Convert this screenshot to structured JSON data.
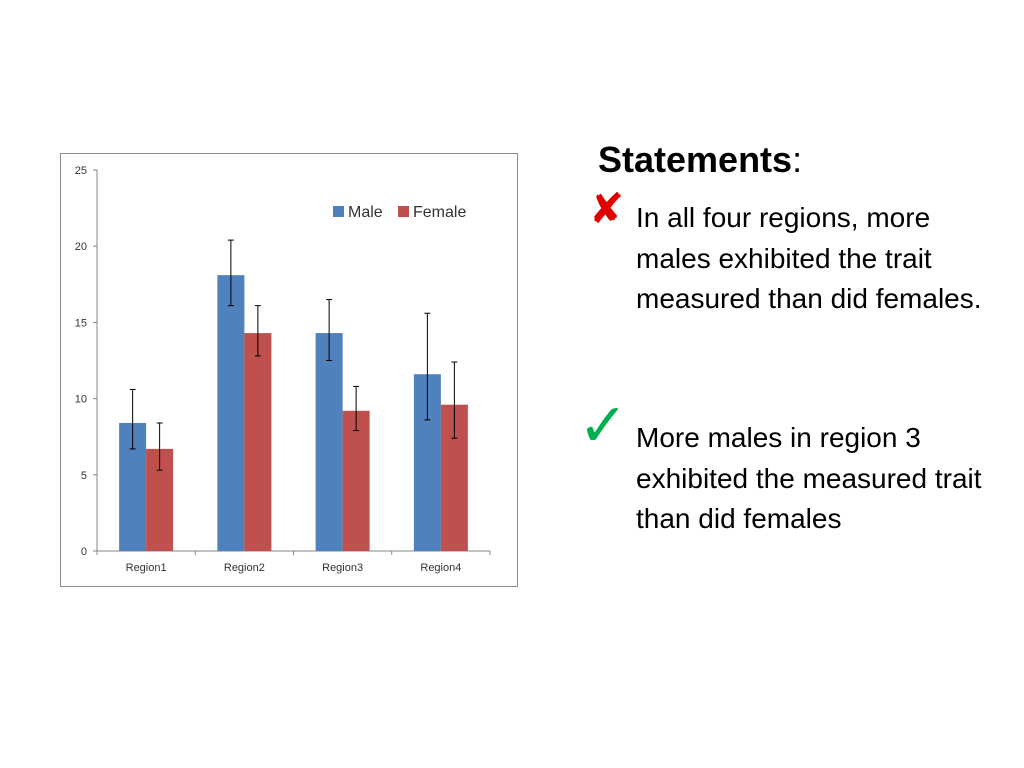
{
  "statements": {
    "title": "Statements",
    "title_suffix": ":",
    "items": [
      {
        "text": "In all four regions, more males exhibited the trait measured than did females.",
        "verdict": "false",
        "icon": "cross-icon",
        "color": "#e00000"
      },
      {
        "text": "More males in region 3 exhibited the measured trait than did females",
        "verdict": "true",
        "icon": "check-icon",
        "color": "#00b050"
      }
    ]
  },
  "chart_data": {
    "type": "bar",
    "categories": [
      "Region1",
      "Region2",
      "Region3",
      "Region4"
    ],
    "series": [
      {
        "name": "Male",
        "color": "#4f81bd",
        "values": [
          8.4,
          18.1,
          14.3,
          11.6
        ],
        "error_low": [
          6.7,
          16.1,
          12.5,
          8.6
        ],
        "error_high": [
          10.6,
          20.4,
          16.5,
          15.6
        ]
      },
      {
        "name": "Female",
        "color": "#c0504d",
        "values": [
          6.7,
          14.3,
          9.2,
          9.6
        ],
        "error_low": [
          5.3,
          12.8,
          7.9,
          7.4
        ],
        "error_high": [
          8.4,
          16.1,
          10.8,
          12.4
        ]
      }
    ],
    "yticks": [
      0,
      5,
      10,
      15,
      20,
      25
    ],
    "ylim": [
      0,
      25
    ],
    "legend": "top-right",
    "grid": false
  }
}
